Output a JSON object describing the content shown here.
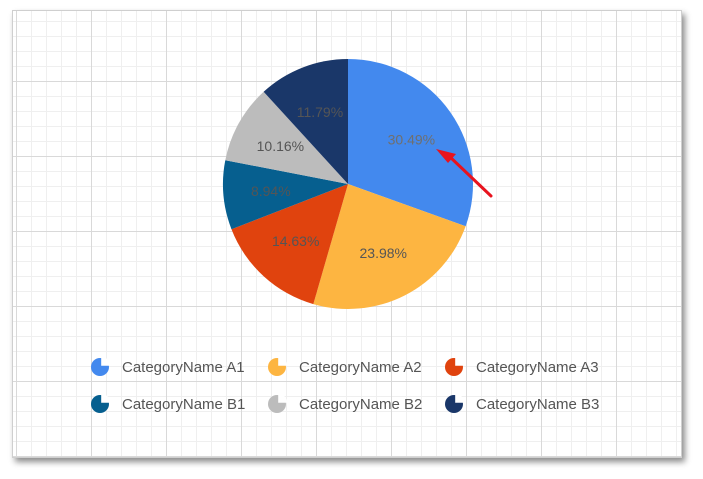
{
  "chart_data": {
    "type": "pie",
    "categories": [
      "CategoryName A1",
      "CategoryName A2",
      "CategoryName A3",
      "CategoryName B1",
      "CategoryName B2",
      "CategoryName B3"
    ],
    "values": [
      30.49,
      23.98,
      14.63,
      8.94,
      10.16,
      11.79
    ],
    "value_labels": [
      "30.49%",
      "23.98%",
      "14.63%",
      "8.94%",
      "10.16%",
      "11.79%"
    ],
    "colors": [
      "#4389ee",
      "#fdb541",
      "#e0430e",
      "#065f8f",
      "#bcbcbc",
      "#1a3769"
    ],
    "label_colors": [
      "#6f6f6f",
      "#555555",
      "#555555",
      "#555555",
      "#555555",
      "#555555"
    ],
    "legend_placement": "bottom",
    "grid": true,
    "annotation": "red-arrow"
  }
}
